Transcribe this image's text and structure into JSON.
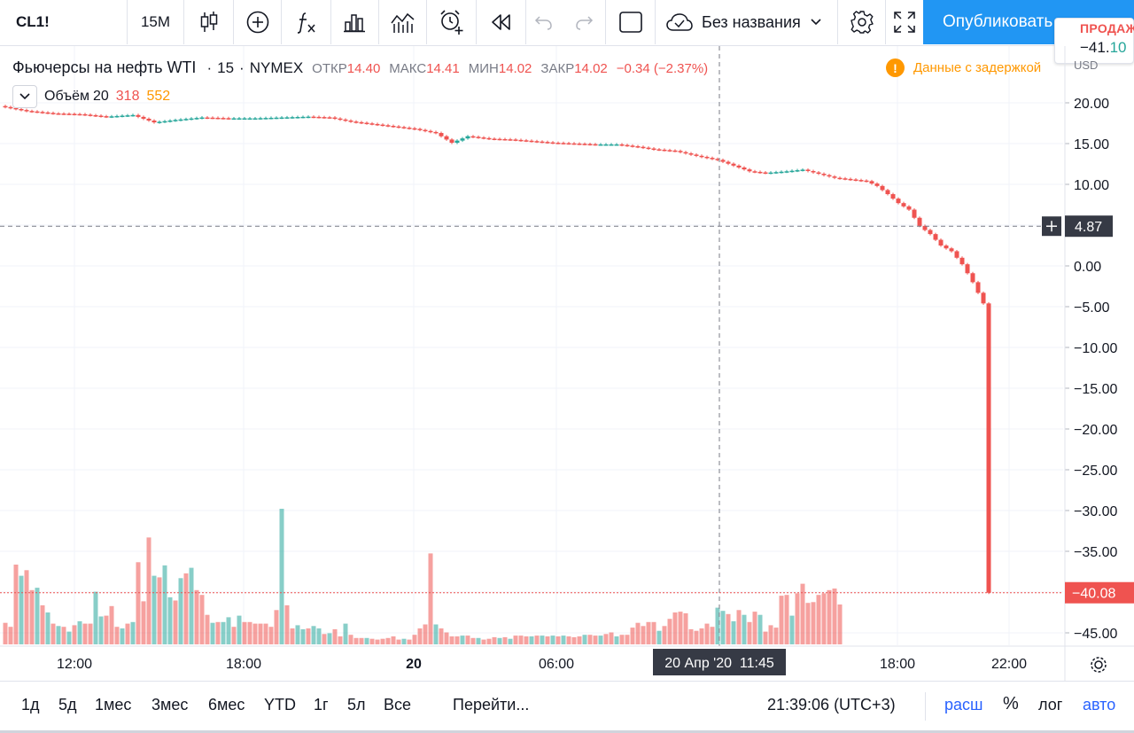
{
  "toolbar": {
    "symbol": "CL1!",
    "interval": "15M",
    "layout_name": "Без названия",
    "publish_label": "Опубликовать",
    "icons": [
      "candles-icon",
      "plus-circle-icon",
      "fx-icon",
      "templates-icon",
      "strategy-icon",
      "alert-clock-icon",
      "replay-icon",
      "undo-icon",
      "redo-icon",
      "layout-square-icon",
      "cloud-icon",
      "chevron-down-icon",
      "gear-icon",
      "fullscreen-icon"
    ]
  },
  "sell": {
    "label": "ПРОДАЖА",
    "price_main": "−41.",
    "price_tail": "10"
  },
  "legend": {
    "title": "Фьючерсы на нефть WTI",
    "sep": "·",
    "interval": "15",
    "exchange": "NYMEX",
    "open_label": "ОТКР",
    "open": "14.40",
    "high_label": "МАКС",
    "high": "14.41",
    "low_label": "МИН",
    "low": "14.02",
    "close_label": "ЗАКР",
    "close": "14.02",
    "change": "−0.34 (−2.37%)",
    "delay_text": "Данные с задержкой",
    "delay_icon": "!",
    "currency": "USD"
  },
  "volume_legend": {
    "name": "Объём",
    "length": "20",
    "value1": "318",
    "value2": "552"
  },
  "colors": {
    "up": "#26a69a",
    "down": "#ef5350",
    "accent": "#2196f3",
    "warning": "#ff9800"
  },
  "chart_data": {
    "type": "bar",
    "subtype": "candlestick_with_volume",
    "x_ticks": [
      "12:00",
      "18:00",
      "20",
      "06:00",
      "20 Апр '20  11:45",
      "18:00",
      "22:00"
    ],
    "y_ticks": [
      "20.00",
      "15.00",
      "10.00",
      "5.00",
      "0.00",
      "−5.00",
      "−10.00",
      "−15.00",
      "−20.00",
      "−25.00",
      "−30.00",
      "−35.00",
      "−40.00",
      "−45.00"
    ],
    "ylim": [
      -46,
      22
    ],
    "crosshair_price_label": "4.87",
    "crosshair_price": 4.87,
    "last_price_label": "−40.08",
    "last_price": -40.08,
    "grid": true,
    "price_path": [
      [
        0,
        19.6
      ],
      [
        5,
        19.0
      ],
      [
        10,
        18.7
      ],
      [
        15,
        18.6
      ],
      [
        20,
        18.3
      ],
      [
        25,
        18.5
      ],
      [
        29,
        17.6
      ],
      [
        33,
        17.9
      ],
      [
        38,
        18.2
      ],
      [
        43,
        18.1
      ],
      [
        48,
        18.1
      ],
      [
        53,
        18.2
      ],
      [
        58,
        18.3
      ],
      [
        62,
        18.2
      ],
      [
        66,
        17.7
      ],
      [
        70,
        17.4
      ],
      [
        74,
        17.1
      ],
      [
        78,
        16.8
      ],
      [
        82,
        16.3
      ],
      [
        85,
        15.1
      ],
      [
        88,
        15.9
      ],
      [
        92,
        15.6
      ],
      [
        96,
        15.5
      ],
      [
        100,
        15.3
      ],
      [
        104,
        15.1
      ],
      [
        108,
        15.0
      ],
      [
        112,
        14.9
      ],
      [
        116,
        14.9
      ],
      [
        120,
        14.6
      ],
      [
        123,
        14.3
      ],
      [
        127,
        14.1
      ],
      [
        131,
        13.5
      ],
      [
        135,
        13.0
      ],
      [
        138,
        12.3
      ],
      [
        141,
        11.6
      ],
      [
        144,
        11.4
      ],
      [
        148,
        11.6
      ],
      [
        151,
        11.8
      ],
      [
        154,
        11.3
      ],
      [
        157,
        10.8
      ],
      [
        160,
        10.6
      ],
      [
        163,
        10.4
      ],
      [
        165,
        9.8
      ],
      [
        167,
        8.8
      ],
      [
        169,
        7.7
      ],
      [
        171,
        6.9
      ],
      [
        173,
        4.9
      ],
      [
        175,
        3.9
      ],
      [
        177,
        2.5
      ],
      [
        179,
        1.8
      ],
      [
        181,
        0.2
      ],
      [
        183,
        -2.0
      ],
      [
        185,
        -4.6
      ],
      [
        186,
        -40.08
      ]
    ],
    "volume": [
      [
        0,
        2.7,
        0
      ],
      [
        1,
        2.2,
        0
      ],
      [
        2,
        10.0,
        0
      ],
      [
        3,
        8.6,
        1
      ],
      [
        4,
        9.3,
        0
      ],
      [
        5,
        6.8,
        0
      ],
      [
        6,
        7.1,
        1
      ],
      [
        7,
        4.9,
        0
      ],
      [
        8,
        4.0,
        1
      ],
      [
        9,
        2.6,
        0
      ],
      [
        10,
        2.3,
        1
      ],
      [
        11,
        2.2,
        0
      ],
      [
        12,
        1.6,
        1
      ],
      [
        13,
        2.4,
        0
      ],
      [
        14,
        2.9,
        1
      ],
      [
        15,
        2.6,
        0
      ],
      [
        16,
        2.6,
        0
      ],
      [
        17,
        6.6,
        1
      ],
      [
        18,
        3.5,
        1
      ],
      [
        19,
        3.6,
        0
      ],
      [
        20,
        4.8,
        0
      ],
      [
        21,
        2.2,
        0
      ],
      [
        22,
        2.0,
        1
      ],
      [
        23,
        2.6,
        0
      ],
      [
        24,
        2.8,
        1
      ],
      [
        25,
        10.3,
        0
      ],
      [
        26,
        5.4,
        0
      ],
      [
        27,
        13.4,
        0
      ],
      [
        28,
        8.6,
        1
      ],
      [
        29,
        8.4,
        0
      ],
      [
        30,
        9.9,
        1
      ],
      [
        31,
        5.9,
        1
      ],
      [
        32,
        5.5,
        0
      ],
      [
        33,
        8.3,
        1
      ],
      [
        34,
        8.9,
        0
      ],
      [
        35,
        9.6,
        1
      ],
      [
        36,
        6.8,
        0
      ],
      [
        37,
        6.2,
        0
      ],
      [
        38,
        3.7,
        0
      ],
      [
        39,
        2.7,
        1
      ],
      [
        40,
        2.8,
        0
      ],
      [
        41,
        2.8,
        1
      ],
      [
        42,
        3.4,
        1
      ],
      [
        43,
        2.2,
        0
      ],
      [
        44,
        3.6,
        1
      ],
      [
        45,
        2.8,
        0
      ],
      [
        46,
        2.8,
        0
      ],
      [
        47,
        2.6,
        0
      ],
      [
        48,
        2.6,
        0
      ],
      [
        49,
        2.6,
        0
      ],
      [
        50,
        2.2,
        0
      ],
      [
        51,
        4.3,
        0
      ],
      [
        52,
        17.0,
        1
      ],
      [
        53,
        4.9,
        0
      ],
      [
        54,
        2.0,
        0
      ],
      [
        55,
        2.4,
        1
      ],
      [
        56,
        1.9,
        1
      ],
      [
        57,
        2.0,
        0
      ],
      [
        58,
        2.3,
        1
      ],
      [
        59,
        2.0,
        1
      ],
      [
        60,
        1.3,
        0
      ],
      [
        61,
        1.4,
        1
      ],
      [
        62,
        1.9,
        0
      ],
      [
        63,
        1.0,
        0
      ],
      [
        64,
        2.6,
        1
      ],
      [
        65,
        1.2,
        0
      ],
      [
        66,
        0.8,
        0
      ],
      [
        67,
        0.8,
        0
      ],
      [
        68,
        0.8,
        1
      ],
      [
        69,
        0.7,
        0
      ],
      [
        70,
        0.6,
        0
      ],
      [
        71,
        0.7,
        0
      ],
      [
        72,
        0.8,
        0
      ],
      [
        73,
        1.0,
        0
      ],
      [
        74,
        0.6,
        0
      ],
      [
        75,
        0.7,
        1
      ],
      [
        76,
        0.6,
        0
      ],
      [
        77,
        1.2,
        0
      ],
      [
        78,
        2.0,
        0
      ],
      [
        79,
        2.5,
        0
      ],
      [
        80,
        11.4,
        0
      ],
      [
        81,
        2.5,
        1
      ],
      [
        82,
        2.0,
        0
      ],
      [
        83,
        1.5,
        0
      ],
      [
        84,
        1.0,
        0
      ],
      [
        85,
        1.0,
        0
      ],
      [
        86,
        1.1,
        1
      ],
      [
        87,
        1.1,
        0
      ],
      [
        88,
        0.8,
        0
      ],
      [
        89,
        0.8,
        1
      ],
      [
        90,
        0.6,
        0
      ],
      [
        91,
        0.7,
        0
      ],
      [
        92,
        0.9,
        0
      ],
      [
        93,
        0.8,
        1
      ],
      [
        94,
        0.9,
        0
      ],
      [
        95,
        0.7,
        1
      ],
      [
        96,
        1.1,
        0
      ],
      [
        97,
        1.1,
        0
      ],
      [
        98,
        1.0,
        0
      ],
      [
        99,
        1.0,
        1
      ],
      [
        100,
        1.1,
        0
      ],
      [
        101,
        1.1,
        1
      ],
      [
        102,
        1.0,
        0
      ],
      [
        103,
        1.1,
        1
      ],
      [
        104,
        1.0,
        0
      ],
      [
        105,
        1.1,
        1
      ],
      [
        106,
        1.0,
        0
      ],
      [
        107,
        0.9,
        0
      ],
      [
        108,
        1.0,
        0
      ],
      [
        109,
        1.2,
        1
      ],
      [
        110,
        1.2,
        0
      ],
      [
        111,
        1.1,
        0
      ],
      [
        112,
        1.1,
        1
      ],
      [
        113,
        1.3,
        0
      ],
      [
        114,
        1.5,
        0
      ],
      [
        115,
        1.0,
        1
      ],
      [
        116,
        1.2,
        0
      ],
      [
        117,
        1.2,
        0
      ],
      [
        118,
        2.1,
        0
      ],
      [
        119,
        2.7,
        0
      ],
      [
        120,
        2.3,
        0
      ],
      [
        121,
        2.8,
        0
      ],
      [
        122,
        2.8,
        0
      ],
      [
        123,
        1.7,
        1
      ],
      [
        124,
        2.3,
        0
      ],
      [
        125,
        3.2,
        0
      ],
      [
        126,
        4.0,
        0
      ],
      [
        127,
        4.1,
        0
      ],
      [
        128,
        3.9,
        0
      ],
      [
        129,
        1.9,
        0
      ],
      [
        130,
        1.7,
        0
      ],
      [
        131,
        2.0,
        0
      ],
      [
        132,
        2.6,
        0
      ],
      [
        133,
        2.2,
        0
      ],
      [
        134,
        4.6,
        1
      ],
      [
        135,
        4.2,
        1
      ],
      [
        136,
        3.8,
        0
      ],
      [
        137,
        2.9,
        1
      ],
      [
        138,
        4.3,
        0
      ],
      [
        139,
        3.7,
        1
      ],
      [
        140,
        2.8,
        0
      ],
      [
        141,
        4.1,
        0
      ],
      [
        142,
        3.7,
        1
      ],
      [
        143,
        1.6,
        0
      ],
      [
        144,
        2.4,
        0
      ],
      [
        145,
        2.1,
        0
      ],
      [
        146,
        6.1,
        0
      ],
      [
        147,
        6.2,
        0
      ],
      [
        148,
        3.6,
        1
      ],
      [
        149,
        6.4,
        0
      ],
      [
        150,
        7.6,
        0
      ],
      [
        151,
        5.2,
        0
      ],
      [
        152,
        5.3,
        0
      ],
      [
        153,
        6.2,
        0
      ],
      [
        154,
        6.4,
        0
      ],
      [
        155,
        6.8,
        0
      ],
      [
        156,
        7.0,
        0
      ],
      [
        157,
        5.0,
        0
      ]
    ]
  },
  "bottom_bar": {
    "ranges": [
      "1д",
      "5д",
      "1мес",
      "3мес",
      "6мес",
      "YTD",
      "1г",
      "5л",
      "Все"
    ],
    "goto": "Перейти...",
    "time": "21:39:06 (UTC+3)",
    "ext": "расш",
    "pct": "%",
    "log": "лог",
    "auto": "авто"
  }
}
